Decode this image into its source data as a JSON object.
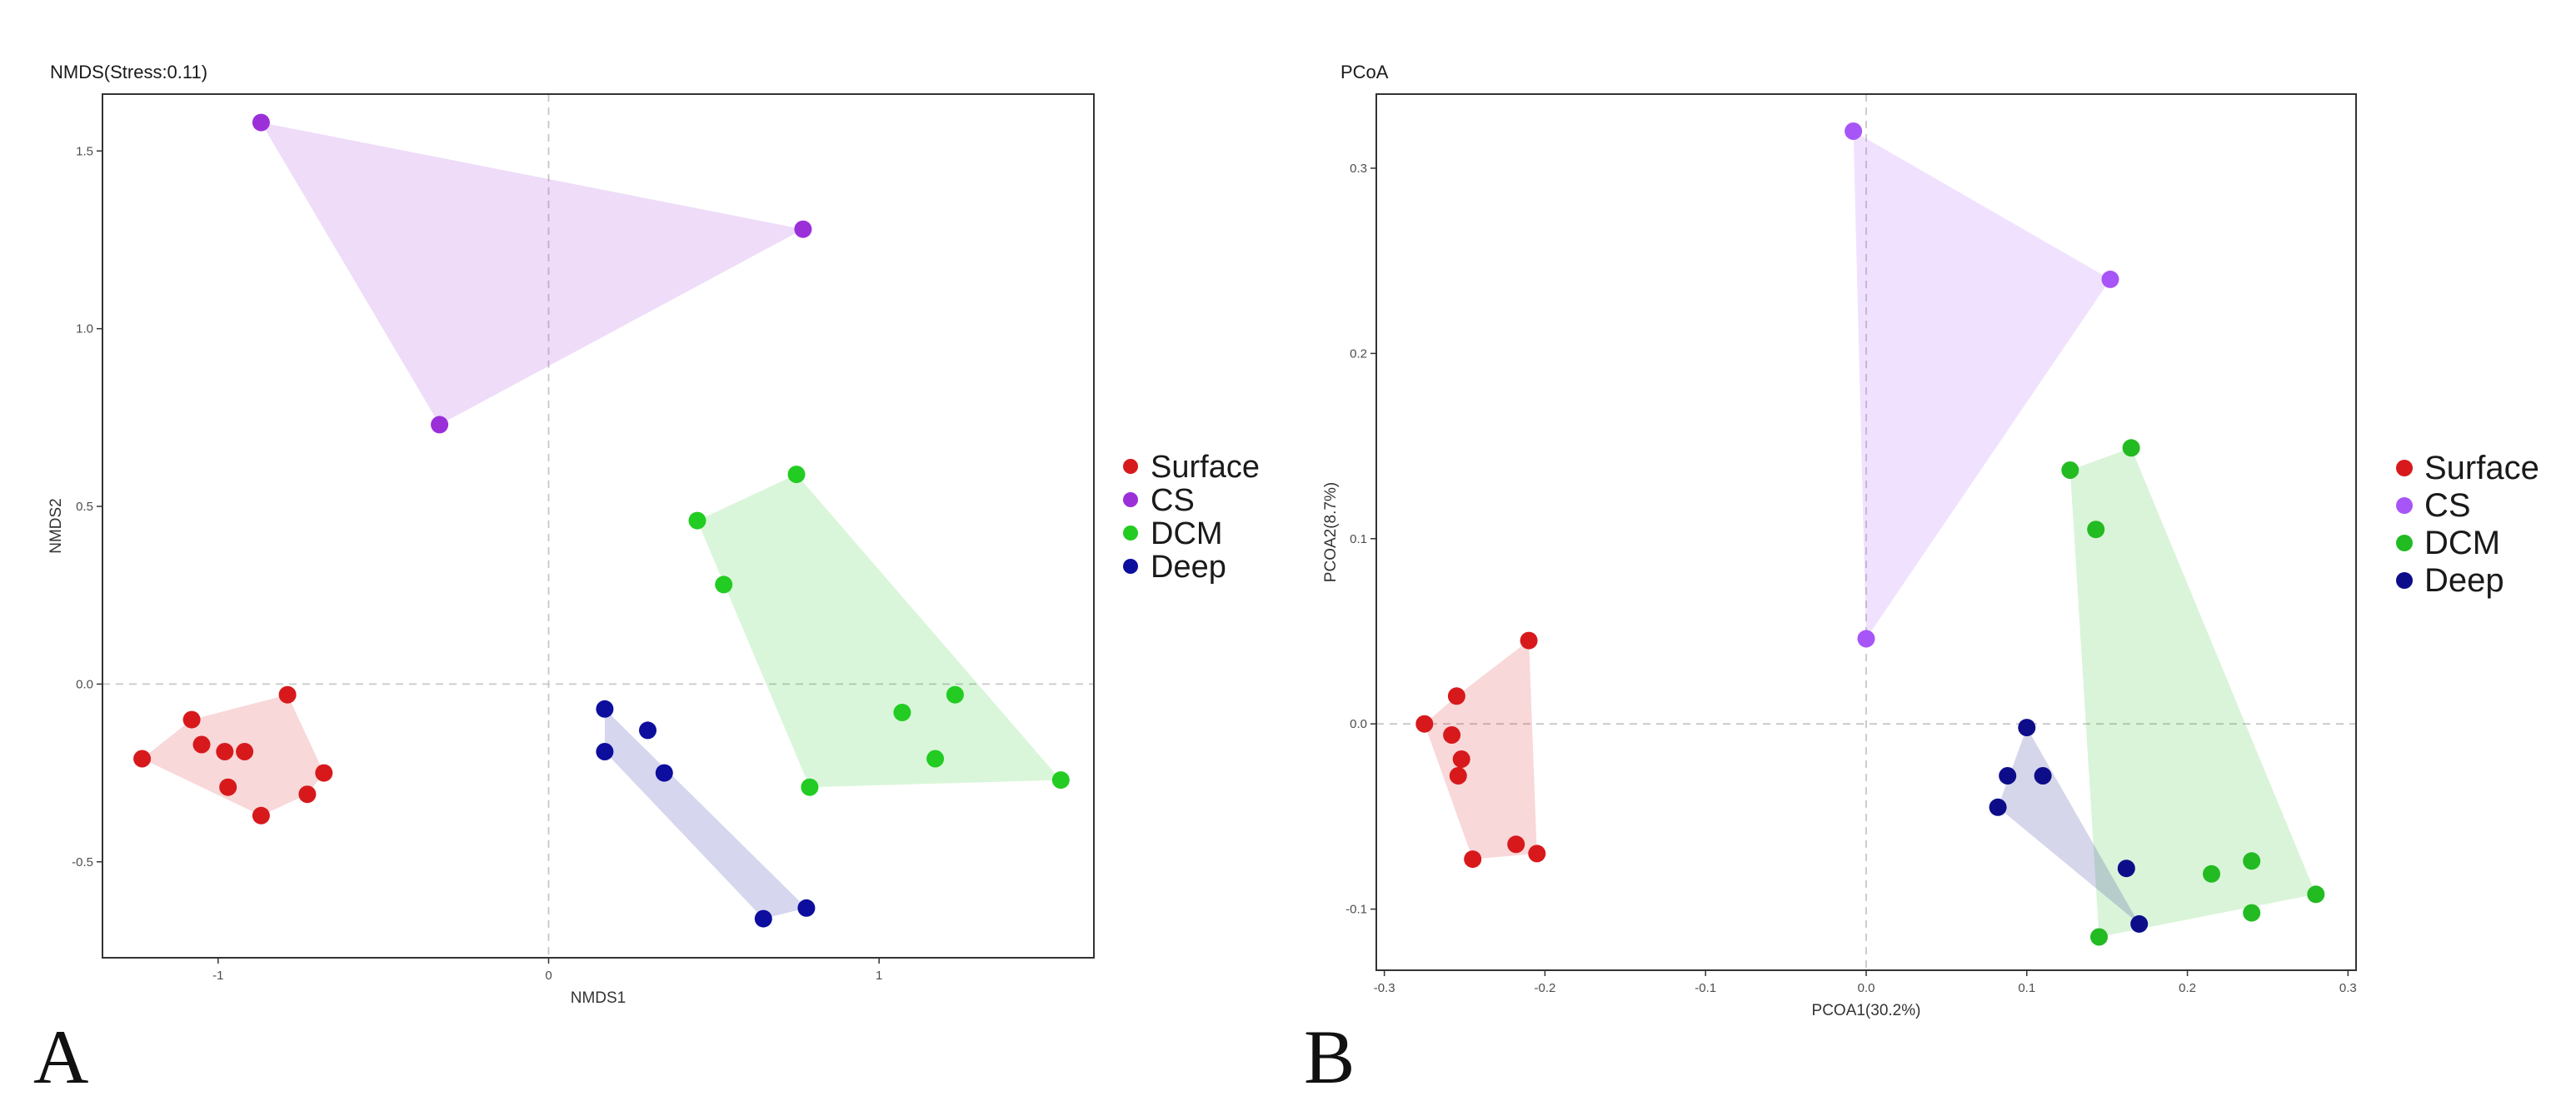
{
  "chart_data": [
    {
      "type": "scatter",
      "panel_letter": "A",
      "title": "NMDS(Stress:0.11)",
      "xlabel": "NMDS1",
      "ylabel": "NMDS2",
      "xlim": [
        -1.35,
        1.65
      ],
      "ylim": [
        -0.77,
        1.66
      ],
      "xticks": [
        -1,
        0,
        1
      ],
      "xtick_labels": [
        "-1",
        "0",
        "1"
      ],
      "yticks": [
        -0.5,
        0.0,
        0.5,
        1.0,
        1.5
      ],
      "ytick_labels": [
        "-0.5",
        "0.0",
        "0.5",
        "1.0",
        "1.5"
      ],
      "reference_lines": {
        "x": 0,
        "y": 0
      },
      "grid": false,
      "legend_position": "right",
      "series": [
        {
          "name": "Surface",
          "color": "#d7191c",
          "points": [
            [
              -1.23,
              -0.21
            ],
            [
              -1.08,
              -0.1
            ],
            [
              -1.05,
              -0.17
            ],
            [
              -0.98,
              -0.19
            ],
            [
              -0.92,
              -0.19
            ],
            [
              -0.97,
              -0.29
            ],
            [
              -0.87,
              -0.37
            ],
            [
              -0.79,
              -0.03
            ],
            [
              -0.73,
              -0.31
            ],
            [
              -0.68,
              -0.25
            ]
          ],
          "hull": [
            [
              -1.23,
              -0.21
            ],
            [
              -1.08,
              -0.1
            ],
            [
              -0.79,
              -0.03
            ],
            [
              -0.68,
              -0.25
            ],
            [
              -0.73,
              -0.31
            ],
            [
              -0.87,
              -0.37
            ]
          ]
        },
        {
          "name": "CS",
          "color": "#9b30d9",
          "points": [
            [
              -0.87,
              1.58
            ],
            [
              0.77,
              1.28
            ],
            [
              -0.33,
              0.73
            ]
          ],
          "hull": [
            [
              -0.87,
              1.58
            ],
            [
              0.77,
              1.28
            ],
            [
              -0.33,
              0.73
            ]
          ]
        },
        {
          "name": "DCM",
          "color": "#22cc22",
          "points": [
            [
              0.45,
              0.46
            ],
            [
              0.53,
              0.28
            ],
            [
              0.75,
              0.59
            ],
            [
              0.79,
              -0.29
            ],
            [
              1.07,
              -0.08
            ],
            [
              1.17,
              -0.21
            ],
            [
              1.23,
              -0.03
            ],
            [
              1.55,
              -0.27
            ]
          ],
          "hull": [
            [
              0.45,
              0.46
            ],
            [
              0.75,
              0.59
            ],
            [
              1.55,
              -0.27
            ],
            [
              0.79,
              -0.29
            ]
          ]
        },
        {
          "name": "Deep",
          "color": "#0d0d9e",
          "points": [
            [
              0.17,
              -0.07
            ],
            [
              0.17,
              -0.19
            ],
            [
              0.3,
              -0.13
            ],
            [
              0.35,
              -0.25
            ],
            [
              0.65,
              -0.66
            ],
            [
              0.78,
              -0.63
            ]
          ],
          "hull": [
            [
              0.17,
              -0.07
            ],
            [
              0.78,
              -0.63
            ],
            [
              0.65,
              -0.66
            ],
            [
              0.17,
              -0.19
            ]
          ]
        }
      ],
      "legend": [
        "Surface",
        "CS",
        "DCM",
        "Deep"
      ]
    },
    {
      "type": "scatter",
      "panel_letter": "B",
      "title": "PCoA",
      "xlabel": "PCOA1(30.2%)",
      "ylabel": "PCOA2(8.7%)",
      "xlim": [
        -0.305,
        0.305
      ],
      "ylim": [
        -0.133,
        0.34
      ],
      "xticks": [
        -0.3,
        -0.2,
        -0.1,
        0.0,
        0.1,
        0.2,
        0.3
      ],
      "xtick_labels": [
        "-0.3",
        "-0.2",
        "-0.1",
        "0.0",
        "0.1",
        "0.2",
        "0.3"
      ],
      "yticks": [
        -0.1,
        0.0,
        0.1,
        0.2,
        0.3
      ],
      "ytick_labels": [
        "-0.1",
        "0.0",
        "0.1",
        "0.2",
        "0.3"
      ],
      "reference_lines": {
        "x": 0,
        "y": 0
      },
      "grid": false,
      "legend_position": "right",
      "series": [
        {
          "name": "Surface",
          "color": "#d7191c",
          "points": [
            [
              -0.275,
              0.0
            ],
            [
              -0.255,
              0.015
            ],
            [
              -0.258,
              -0.006
            ],
            [
              -0.252,
              -0.019
            ],
            [
              -0.254,
              -0.028
            ],
            [
              -0.21,
              0.045
            ],
            [
              -0.218,
              -0.065
            ],
            [
              -0.205,
              -0.07
            ],
            [
              -0.245,
              -0.073
            ]
          ],
          "hull": [
            [
              -0.275,
              0.0
            ],
            [
              -0.255,
              0.015
            ],
            [
              -0.21,
              0.045
            ],
            [
              -0.205,
              -0.07
            ],
            [
              -0.245,
              -0.073
            ]
          ]
        },
        {
          "name": "CS",
          "color": "#a855f7",
          "points": [
            [
              -0.008,
              0.32
            ],
            [
              0.152,
              0.24
            ],
            [
              0.0,
              0.046
            ]
          ],
          "hull": [
            [
              -0.008,
              0.32
            ],
            [
              0.152,
              0.24
            ],
            [
              0.0,
              0.046
            ]
          ]
        },
        {
          "name": "DCM",
          "color": "#22bb22",
          "points": [
            [
              0.127,
              0.137
            ],
            [
              0.165,
              0.149
            ],
            [
              0.143,
              0.105
            ],
            [
              0.215,
              -0.081
            ],
            [
              0.24,
              -0.074
            ],
            [
              0.24,
              -0.102
            ],
            [
              0.28,
              -0.092
            ],
            [
              0.145,
              -0.115
            ]
          ],
          "hull": [
            [
              0.127,
              0.137
            ],
            [
              0.165,
              0.149
            ],
            [
              0.28,
              -0.092
            ],
            [
              0.145,
              -0.115
            ]
          ]
        },
        {
          "name": "Deep",
          "color": "#0d0d8a",
          "points": [
            [
              0.1,
              -0.002
            ],
            [
              0.088,
              -0.028
            ],
            [
              0.11,
              -0.028
            ],
            [
              0.082,
              -0.045
            ],
            [
              0.162,
              -0.078
            ],
            [
              0.17,
              -0.108
            ]
          ],
          "hull": [
            [
              0.1,
              -0.002
            ],
            [
              0.17,
              -0.108
            ],
            [
              0.082,
              -0.045
            ]
          ]
        }
      ],
      "legend": [
        "Surface",
        "CS",
        "DCM",
        "Deep"
      ]
    }
  ]
}
